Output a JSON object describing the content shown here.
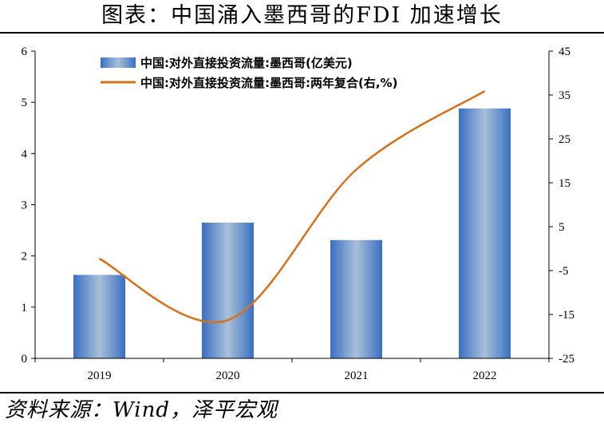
{
  "title": "图表：中国涌入墨西哥的FDI 加速增长",
  "source": "资料来源：Wind，泽平宏观",
  "colors": {
    "bar_edge": "#3a6fc4",
    "bar_center": "#a9c0d6",
    "line": "#d2721f",
    "axis": "#000000"
  },
  "chart_data": {
    "type": "bar",
    "categories": [
      "2019",
      "2020",
      "2021",
      "2022"
    ],
    "series": [
      {
        "name": "中国:对外直接投资流量:墨西哥(亿美元)",
        "type": "bar",
        "axis": "left",
        "values": [
          1.63,
          2.65,
          2.31,
          4.88
        ]
      },
      {
        "name": "中国:对外直接投资流量:墨西哥:两年复合(右,%)",
        "type": "line",
        "axis": "right",
        "values": [
          -2.3,
          -16.3,
          18.0,
          35.9
        ]
      }
    ],
    "y_left": {
      "min": 0,
      "max": 6,
      "ticks": [
        "0",
        "1",
        "2",
        "3",
        "4",
        "5",
        "6"
      ]
    },
    "y_right": {
      "min": -25,
      "max": 45,
      "ticks": [
        "-25",
        "-15",
        "-5",
        "5",
        "15",
        "25",
        "35",
        "45"
      ]
    },
    "xlabel": "",
    "ylabel": "",
    "legend_position": "top-center",
    "grid": false
  }
}
